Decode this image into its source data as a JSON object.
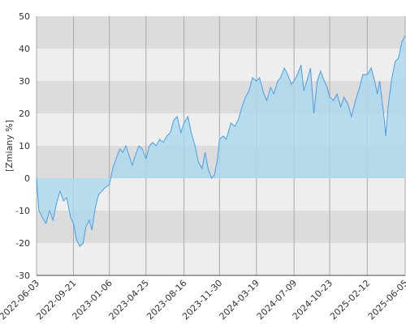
{
  "chart_data": {
    "type": "area",
    "y_label": "[Zmiany %]",
    "x": [
      "2022-06-03",
      "2022-06-10",
      "2022-06-20",
      "2022-07-01",
      "2022-07-12",
      "2022-07-22",
      "2022-08-01",
      "2022-08-12",
      "2022-08-22",
      "2022-09-01",
      "2022-09-12",
      "2022-09-21",
      "2022-09-30",
      "2022-10-10",
      "2022-10-20",
      "2022-10-28",
      "2022-11-07",
      "2022-11-15",
      "2022-11-25",
      "2022-12-05",
      "2022-12-15",
      "2022-12-23",
      "2023-01-06",
      "2023-01-16",
      "2023-01-26",
      "2023-02-06",
      "2023-02-15",
      "2023-02-24",
      "2023-03-06",
      "2023-03-15",
      "2023-03-24",
      "2023-04-04",
      "2023-04-14",
      "2023-04-25",
      "2023-05-05",
      "2023-05-15",
      "2023-05-25",
      "2023-06-05",
      "2023-06-15",
      "2023-06-26",
      "2023-07-06",
      "2023-07-17",
      "2023-07-27",
      "2023-08-07",
      "2023-08-16",
      "2023-08-28",
      "2023-09-07",
      "2023-09-18",
      "2023-09-28",
      "2023-10-09",
      "2023-10-18",
      "2023-10-27",
      "2023-11-06",
      "2023-11-15",
      "2023-11-24",
      "2023-11-30",
      "2023-12-11",
      "2023-12-20",
      "2024-01-03",
      "2024-01-15",
      "2024-01-25",
      "2024-02-05",
      "2024-02-15",
      "2024-02-26",
      "2024-03-07",
      "2024-03-19",
      "2024-03-28",
      "2024-04-10",
      "2024-04-19",
      "2024-04-30",
      "2024-05-10",
      "2024-05-21",
      "2024-05-30",
      "2024-06-10",
      "2024-06-20",
      "2024-07-01",
      "2024-07-09",
      "2024-07-19",
      "2024-07-30",
      "2024-08-07",
      "2024-08-16",
      "2024-08-27",
      "2024-09-06",
      "2024-09-16",
      "2024-09-26",
      "2024-10-07",
      "2024-10-16",
      "2024-10-23",
      "2024-11-04",
      "2024-11-14",
      "2024-11-25",
      "2024-12-05",
      "2024-12-16",
      "2024-12-27",
      "2025-01-08",
      "2025-01-20",
      "2025-01-30",
      "2025-02-12",
      "2025-02-24",
      "2025-03-06",
      "2025-03-14",
      "2025-03-21",
      "2025-04-04",
      "2025-04-08",
      "2025-04-15",
      "2025-04-25",
      "2025-05-06",
      "2025-05-16",
      "2025-05-26",
      "2025-06-05"
    ],
    "values": [
      0,
      -10,
      -12,
      -14,
      -10,
      -13,
      -8,
      -4,
      -7,
      -6,
      -12,
      -14,
      -19,
      -21,
      -20,
      -15,
      -13,
      -16,
      -9,
      -5,
      -4,
      -3,
      -2,
      3,
      6,
      9,
      8,
      10,
      7,
      4,
      7,
      10,
      9,
      6,
      10,
      11,
      10,
      12,
      11,
      13,
      14,
      18,
      19,
      14,
      17,
      19,
      14,
      10,
      5,
      3,
      8,
      3,
      0,
      1,
      6,
      12,
      13,
      12,
      17,
      16,
      18,
      22,
      25,
      27,
      31,
      30,
      31,
      26,
      24,
      28,
      26,
      30,
      31,
      34,
      32,
      29,
      30,
      32,
      35,
      27,
      30,
      34,
      20,
      30,
      33,
      30,
      28,
      25,
      24,
      26,
      22,
      25,
      23,
      19,
      24,
      28,
      32,
      32,
      34,
      30,
      26,
      30,
      18,
      13,
      22,
      30,
      36,
      37,
      42,
      44
    ],
    "color": "#4a9ee6",
    "fill_color": "#a9d8ef",
    "xlim": [
      "2022-06-03",
      "2025-06-05"
    ],
    "xticks": [
      "2022-06-03",
      "2022-09-21",
      "2023-01-06",
      "2023-04-25",
      "2023-08-16",
      "2023-11-30",
      "2024-03-19",
      "2024-07-09",
      "2024-10-23",
      "2025-02-12",
      "2025-06-05"
    ],
    "ylim": [
      -30,
      50
    ],
    "yticks": [
      -30,
      -20,
      -10,
      0,
      10,
      20,
      30,
      40,
      50
    ],
    "band_colors": [
      "#eeeeee",
      "#dcdcdc"
    ],
    "grid": true
  }
}
